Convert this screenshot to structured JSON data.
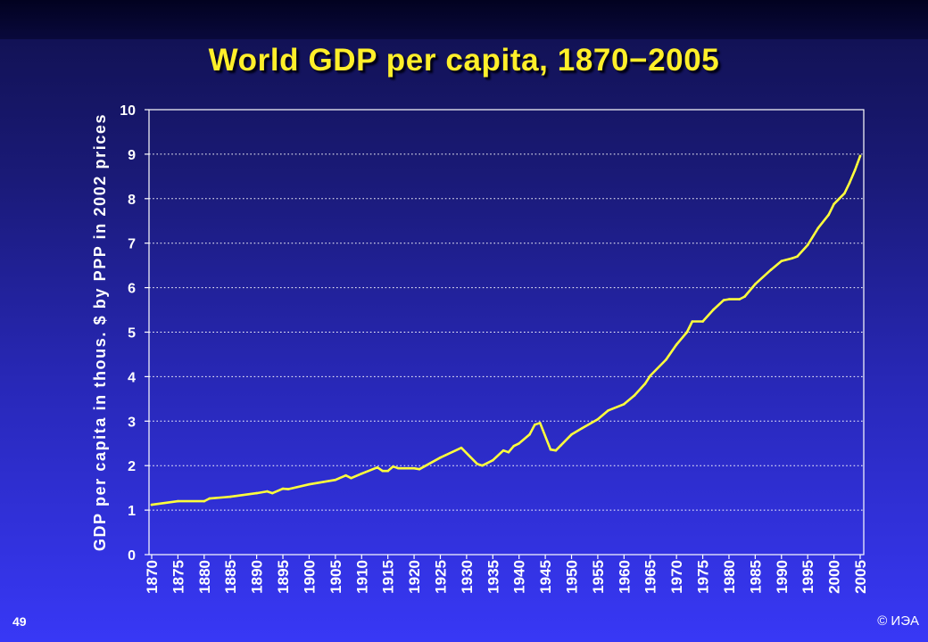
{
  "slide": {
    "number": "49",
    "copyright": "© ИЭА"
  },
  "colors": {
    "background_top": "#10104c",
    "background_bottom": "#3838f6",
    "title": "#ffef2a",
    "line": "#ffff3c",
    "text": "#ffffff"
  },
  "chart_data": {
    "type": "line",
    "title": "World GDP per capita, 1870−2005",
    "ylabel": "GDP per capita in thous. $ by PPP in 2002 prices",
    "xlim": [
      1870,
      2005
    ],
    "ylim": [
      0,
      10
    ],
    "grid": true,
    "x_ticks": [
      "1870",
      "1875",
      "1880",
      "1885",
      "1890",
      "1895",
      "1900",
      "1905",
      "1910",
      "1915",
      "1920",
      "1925",
      "1930",
      "1935",
      "1940",
      "1945",
      "1950",
      "1955",
      "1960",
      "1965",
      "1970",
      "1975",
      "1980",
      "1985",
      "1990",
      "1995",
      "2000",
      "2005"
    ],
    "y_ticks": [
      "0",
      "1",
      "2",
      "3",
      "4",
      "5",
      "6",
      "7",
      "8",
      "9",
      "10"
    ],
    "series": [
      {
        "x": [
          1870,
          1875,
          1880,
          1881,
          1885,
          1890,
          1892,
          1893,
          1895,
          1896,
          1900,
          1902,
          1905,
          1907,
          1908,
          1910,
          1913,
          1914,
          1915,
          1916,
          1917,
          1920,
          1921,
          1925,
          1929,
          1932,
          1933,
          1935,
          1937,
          1938,
          1939,
          1940,
          1942,
          1943,
          1944,
          1946,
          1947,
          1948,
          1950,
          1952,
          1955,
          1957,
          1960,
          1962,
          1964,
          1965,
          1968,
          1970,
          1972,
          1973,
          1975,
          1977,
          1979,
          1980,
          1982,
          1983,
          1985,
          1988,
          1990,
          1992,
          1993,
          1995,
          1997,
          1999,
          2000,
          2001,
          2002,
          2003,
          2004,
          2005
        ],
        "y": [
          1.12,
          1.2,
          1.2,
          1.26,
          1.3,
          1.38,
          1.42,
          1.38,
          1.48,
          1.47,
          1.58,
          1.62,
          1.68,
          1.78,
          1.72,
          1.82,
          1.96,
          1.88,
          1.88,
          1.98,
          1.94,
          1.94,
          1.92,
          2.18,
          2.4,
          2.04,
          2.0,
          2.12,
          2.34,
          2.3,
          2.44,
          2.5,
          2.7,
          2.92,
          2.96,
          2.36,
          2.34,
          2.46,
          2.7,
          2.84,
          3.04,
          3.24,
          3.38,
          3.58,
          3.84,
          4.02,
          4.38,
          4.72,
          5.0,
          5.24,
          5.24,
          5.5,
          5.72,
          5.74,
          5.74,
          5.8,
          6.08,
          6.4,
          6.6,
          6.66,
          6.7,
          6.96,
          7.34,
          7.64,
          7.88,
          8.0,
          8.12,
          8.36,
          8.64,
          8.96
        ]
      }
    ]
  }
}
